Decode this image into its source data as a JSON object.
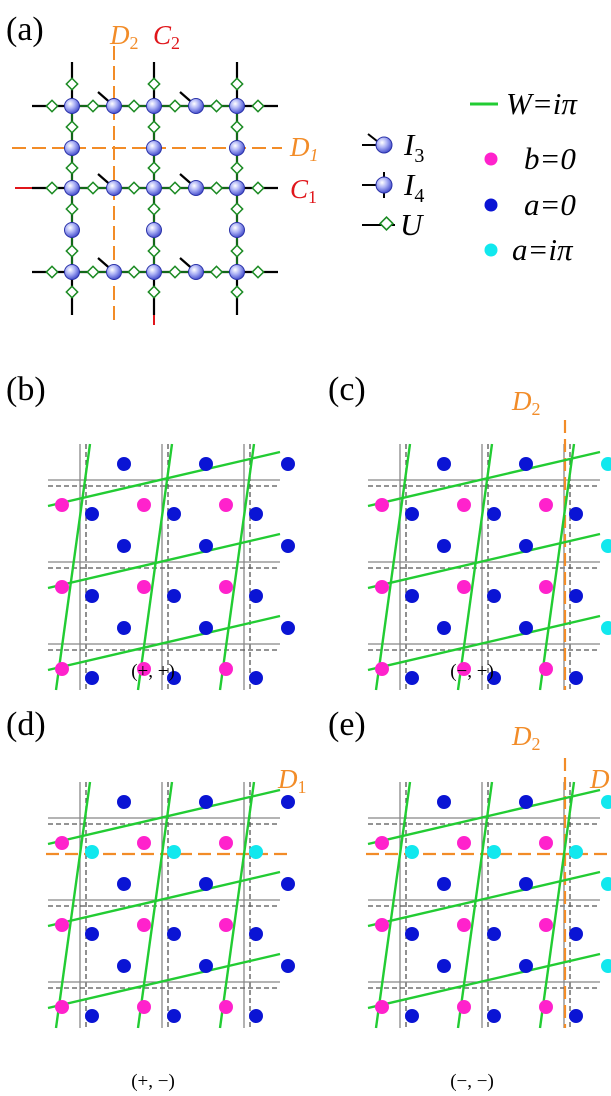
{
  "panel_labels": [
    "(a)",
    "(b)",
    "(c)",
    "(d)",
    "(e)"
  ],
  "panel_a": {
    "lines": [
      {
        "letter": "D",
        "sub": "2",
        "color": "#f28c28"
      },
      {
        "letter": "C",
        "sub": "2",
        "color": "#e0161b"
      },
      {
        "letter": "D",
        "sub": "1",
        "color": "#f28c28"
      },
      {
        "letter": "C",
        "sub": "1",
        "color": "#e0161b"
      }
    ]
  },
  "legend_tensors": [
    {
      "icon": "tensor-i3-icon",
      "letter": "I",
      "sub": "3"
    },
    {
      "icon": "tensor-i4-icon",
      "letter": "I",
      "sub": "4"
    },
    {
      "icon": "tensor-u-icon",
      "letter": "U",
      "sub": ""
    }
  ],
  "legend_values": [
    {
      "icon": "green-line-icon",
      "label": "W=iπ",
      "color": "#22cc33"
    },
    {
      "icon": "magenta-dot-icon",
      "label": "b=0",
      "color": "#ff22cc"
    },
    {
      "icon": "blue-dot-icon",
      "label": "a=0",
      "color": "#0a14d4"
    },
    {
      "icon": "cyan-dot-icon",
      "label": "a=iπ",
      "color": "#11e8ee"
    }
  ],
  "captions": [
    "(+, +)",
    "(−, +)",
    "(+, −)",
    "(−, −)"
  ],
  "defect_labels": {
    "c_top": {
      "letter": "D",
      "sub": "2"
    },
    "d_right": {
      "letter": "D",
      "sub": "1"
    },
    "e_top": {
      "letter": "D",
      "sub": "2"
    },
    "e_right": {
      "letter": "D",
      "sub": ""
    }
  },
  "colors": {
    "orange": "#f28c28",
    "red": "#e0161b",
    "green": "#22cc33",
    "magenta": "#ff22cc",
    "blue": "#0a14d4",
    "cyan": "#11e8ee",
    "tensor": "#6f78e6"
  }
}
